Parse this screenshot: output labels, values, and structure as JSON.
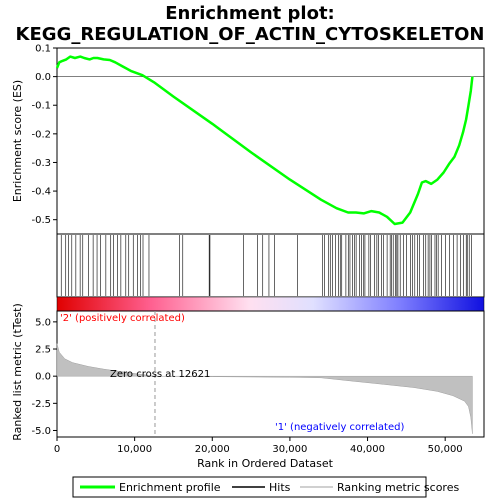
{
  "chart_data": {
    "type": "line",
    "title_line1": "Enrichment plot:",
    "title_line2": "KEGG_REGULATION_OF_ACTIN_CYTOSKELETON",
    "xlabel": "Rank in Ordered Dataset",
    "ylabel_top": "Enrichment score (ES)",
    "ylabel_bottom": "Ranked list metric (tTest)",
    "xlim": [
      0,
      55000
    ],
    "x_ticks": [
      0,
      10000,
      20000,
      30000,
      40000,
      50000
    ],
    "x_tick_labels": [
      "0",
      "10,000",
      "20,000",
      "30,000",
      "40,000",
      "50,000"
    ],
    "es_ylim": [
      -0.55,
      0.1
    ],
    "es_ticks": [
      0.1,
      0.0,
      -0.1,
      -0.2,
      -0.3,
      -0.4,
      -0.5
    ],
    "es_tick_labels": [
      "0.1",
      "0.0",
      "-0.1",
      "-0.2",
      "-0.3",
      "-0.4",
      "-0.5"
    ],
    "metric_ylim": [
      -5.6,
      6.0
    ],
    "metric_ticks": [
      5.0,
      2.5,
      0.0,
      -2.5,
      -5.0
    ],
    "metric_tick_labels": [
      "5.0",
      "2.5",
      "0.0",
      "-2.5",
      "-5.0"
    ],
    "n_genes": 53500,
    "zero_cross": 12621,
    "zero_cross_label": "Zero cross at 12621",
    "pos_label": "'2' (positively correlated)",
    "neg_label": "'1' (negatively correlated)",
    "series": [
      {
        "name": "Enrichment profile",
        "color": "#00ff00",
        "x": [
          0,
          300,
          700,
          1200,
          1700,
          2300,
          3000,
          3500,
          4200,
          4700,
          5200,
          6000,
          6800,
          7500,
          8500,
          9500,
          11000,
          12500,
          15000,
          20000,
          25000,
          30000,
          34000,
          36000,
          37500,
          38500,
          39500,
          40500,
          41500,
          42500,
          43500,
          44500,
          45500,
          46500,
          47000,
          47500,
          48200,
          49000,
          49800,
          50500,
          51200,
          51800,
          52300,
          52700,
          53000,
          53300,
          53500
        ],
        "y": [
          0.03,
          0.05,
          0.055,
          0.06,
          0.07,
          0.065,
          0.07,
          0.065,
          0.06,
          0.065,
          0.065,
          0.06,
          0.058,
          0.05,
          0.035,
          0.02,
          0.005,
          -0.02,
          -0.07,
          -0.165,
          -0.265,
          -0.36,
          -0.43,
          -0.46,
          -0.475,
          -0.475,
          -0.478,
          -0.47,
          -0.475,
          -0.49,
          -0.515,
          -0.51,
          -0.475,
          -0.41,
          -0.37,
          -0.365,
          -0.375,
          -0.36,
          -0.335,
          -0.305,
          -0.28,
          -0.24,
          -0.195,
          -0.15,
          -0.1,
          -0.05,
          0.0
        ]
      }
    ],
    "hits_dense_ranges": [
      [
        0,
        12600
      ],
      [
        34000,
        53500
      ]
    ],
    "hits_sparse": [
      15800,
      16200,
      19600,
      19700,
      24000,
      25800,
      26500,
      27300,
      28000,
      31000
    ],
    "metric_curve": {
      "x": [
        0,
        300,
        1000,
        2000,
        4000,
        6000,
        8000,
        10000,
        12621,
        20000,
        30000,
        34000,
        38000,
        42000,
        46000,
        49000,
        51000,
        52500,
        53000,
        53300,
        53500
      ],
      "y": [
        3.0,
        2.2,
        1.6,
        1.25,
        0.9,
        0.65,
        0.45,
        0.25,
        0.0,
        -0.05,
        -0.1,
        -0.15,
        -0.45,
        -0.75,
        -1.05,
        -1.4,
        -1.8,
        -2.3,
        -2.8,
        -3.8,
        -5.3
      ]
    },
    "legend": {
      "enrichment_label": "Enrichment profile",
      "hits_label": "Hits",
      "metric_label": "Ranking metric scores"
    },
    "colors": {
      "profile": "#00ff00",
      "hits": "#000000",
      "metric_fill": "#c0c0c0",
      "pos_band": "#ff0000",
      "neg_band": "#0000ff",
      "pos_text": "#ff0000",
      "neg_text": "#0000ff"
    }
  }
}
